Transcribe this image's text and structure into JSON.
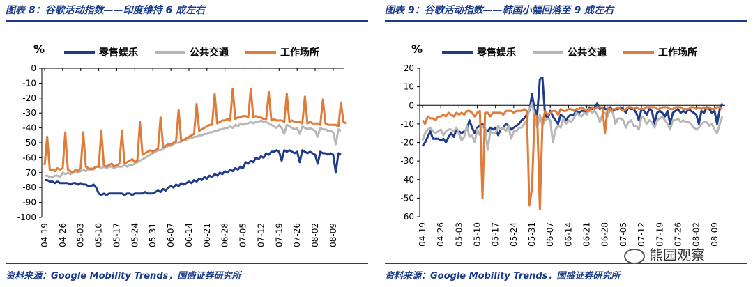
{
  "panels": [
    {
      "title": "图表 8：谷歌活动指数——印度维持 6 成左右",
      "source": "资料来源：Google Mobility Trends，国盛证券研究所"
    },
    {
      "title": "图表 9：谷歌活动指数——韩国小幅回落至 9 成左右",
      "source": "资料来源：Google Mobility Trends，国盛证券研究所"
    }
  ],
  "watermark": {
    "text": "熊园观察",
    "icon": "wechat-icon"
  },
  "chart_data": [
    {
      "type": "line",
      "unit_label": "%",
      "ylim": [
        -100,
        0
      ],
      "yticks": [
        0,
        -10,
        -20,
        -30,
        -40,
        -50,
        -60,
        -70,
        -80,
        -90,
        -100
      ],
      "x_tick_labels": [
        "04-19",
        "04-26",
        "05-03",
        "05-10",
        "05-17",
        "05-24",
        "05-31",
        "06-07",
        "06-14",
        "06-21",
        "06-28",
        "07-05",
        "07-12",
        "07-19",
        "07-26",
        "08-02",
        "08-09"
      ],
      "legend_position": "top",
      "x_start": "04-19",
      "days": 116,
      "series": [
        {
          "name": "零售娱乐",
          "color": "#1f3c88",
          "values": [
            -75,
            -75,
            -76,
            -76,
            -77,
            -76,
            -77,
            -77,
            -77,
            -77,
            -78,
            -77,
            -77,
            -78,
            -77,
            -78,
            -78,
            -79,
            -79,
            -78,
            -80,
            -84,
            -85,
            -84,
            -85,
            -84,
            -84,
            -84,
            -84,
            -84,
            -84,
            -85,
            -84,
            -84,
            -85,
            -84,
            -84,
            -84,
            -84,
            -83,
            -84,
            -84,
            -84,
            -83,
            -82,
            -83,
            -81,
            -82,
            -80,
            -79,
            -80,
            -78,
            -79,
            -77,
            -78,
            -77,
            -76,
            -77,
            -75,
            -76,
            -74,
            -75,
            -73,
            -74,
            -72,
            -73,
            -71,
            -72,
            -70,
            -71,
            -69,
            -70,
            -68,
            -69,
            -67,
            -68,
            -66,
            -67,
            -63,
            -64,
            -62,
            -63,
            -60,
            -61,
            -59,
            -60,
            -57,
            -58,
            -56,
            -56,
            -55,
            -56,
            -62,
            -55,
            -56,
            -55,
            -56,
            -57,
            -56,
            -63,
            -55,
            -56,
            -57,
            -56,
            -57,
            -58,
            -64,
            -56,
            -57,
            -57,
            -58,
            -57,
            -58,
            -70,
            -57,
            -58
          ]
        },
        {
          "name": "公共交通",
          "color": "#b7b7b7",
          "values": [
            -72,
            -72,
            -73,
            -73,
            -72,
            -72,
            -73,
            -70,
            -71,
            -70,
            -71,
            -70,
            -69,
            -70,
            -69,
            -68,
            -69,
            -68,
            -67,
            -68,
            -66,
            -66,
            -67,
            -66,
            -67,
            -66,
            -66,
            -67,
            -66,
            -66,
            -66,
            -65,
            -66,
            -65,
            -65,
            -64,
            -63,
            -62,
            -61,
            -60,
            -59,
            -58,
            -57,
            -56,
            -55,
            -55,
            -54,
            -53,
            -52,
            -52,
            -51,
            -50,
            -50,
            -49,
            -48,
            -48,
            -47,
            -47,
            -46,
            -46,
            -45,
            -45,
            -44,
            -44,
            -43,
            -43,
            -42,
            -42,
            -41,
            -41,
            -40,
            -40,
            -39,
            -40,
            -38,
            -39,
            -37,
            -38,
            -37,
            -37,
            -36,
            -37,
            -36,
            -36,
            -35,
            -36,
            -36,
            -37,
            -38,
            -39,
            -40,
            -38,
            -40,
            -44,
            -38,
            -39,
            -40,
            -41,
            -40,
            -44,
            -39,
            -40,
            -41,
            -40,
            -41,
            -42,
            -46,
            -40,
            -41,
            -41,
            -42,
            -42,
            -43,
            -51,
            -41,
            -42
          ]
        },
        {
          "name": "工作场所",
          "color": "#e07b39",
          "values": [
            -65,
            -46,
            -68,
            -68,
            -69,
            -67,
            -68,
            -67,
            -43,
            -68,
            -69,
            -70,
            -68,
            -69,
            -67,
            -43,
            -66,
            -67,
            -68,
            -67,
            -66,
            -66,
            -42,
            -65,
            -66,
            -65,
            -64,
            -66,
            -65,
            -64,
            -42,
            -64,
            -63,
            -62,
            -61,
            -63,
            -62,
            -36,
            -58,
            -57,
            -56,
            -55,
            -56,
            -55,
            -54,
            -33,
            -53,
            -52,
            -51,
            -51,
            -50,
            -49,
            -28,
            -49,
            -48,
            -47,
            -46,
            -45,
            -44,
            -24,
            -42,
            -41,
            -40,
            -39,
            -38,
            -38,
            -17,
            -37,
            -36,
            -35,
            -35,
            -34,
            -35,
            -14,
            -34,
            -33,
            -33,
            -32,
            -32,
            -33,
            -14,
            -33,
            -32,
            -33,
            -33,
            -34,
            -34,
            -16,
            -35,
            -34,
            -35,
            -35,
            -35,
            -36,
            -17,
            -36,
            -35,
            -36,
            -36,
            -36,
            -37,
            -19,
            -37,
            -36,
            -37,
            -37,
            -37,
            -38,
            -21,
            -37,
            -38,
            -38,
            -38,
            -38,
            -39,
            -23,
            -36,
            -37
          ]
        }
      ]
    },
    {
      "type": "line",
      "unit_label": "%",
      "ylim": [
        -60,
        20
      ],
      "yticks": [
        20,
        10,
        0,
        -10,
        -20,
        -30,
        -40,
        -50,
        -60
      ],
      "x_tick_labels": [
        "04-19",
        "04-26",
        "05-03",
        "05-10",
        "05-17",
        "05-24",
        "05-31",
        "06-07",
        "06-14",
        "06-21",
        "06-28",
        "07-05",
        "07-12",
        "07-19",
        "07-26",
        "08-02",
        "08-09"
      ],
      "legend_position": "top",
      "x_start": "04-19",
      "days": 116,
      "series": [
        {
          "name": "零售娱乐",
          "color": "#1f3c88",
          "values": [
            -22,
            -20,
            -17,
            -14,
            -18,
            -18,
            -18,
            -19,
            -18,
            -20,
            -17,
            -15,
            -17,
            -13,
            -14,
            -15,
            -14,
            -13,
            -8,
            -12,
            -15,
            -12,
            -11,
            -10,
            -13,
            -14,
            -12,
            -13,
            -12,
            -16,
            -13,
            -12,
            -10,
            -11,
            -13,
            -12,
            -11,
            -10,
            -8,
            -7,
            -5,
            -3,
            6,
            -2,
            -5,
            14,
            15,
            -5,
            -7,
            -3,
            -6,
            -8,
            -10,
            -5,
            -6,
            -8,
            -6,
            -5,
            -5,
            -3,
            -4,
            -3,
            -3,
            -4,
            -1,
            -2,
            -1,
            1,
            -2,
            -1,
            -2,
            -2,
            -1,
            -3,
            -2,
            -2,
            -1,
            -2,
            -4,
            -1,
            -2,
            -2,
            -4,
            -8,
            -2,
            -3,
            -5,
            -2,
            -3,
            -10,
            -4,
            -3,
            -4,
            -6,
            -3,
            -10,
            -4,
            -3,
            -2,
            -4,
            -3,
            -4,
            -2,
            -3,
            -4,
            -5,
            -10,
            -3,
            -4,
            -1,
            -2,
            -4,
            -3,
            -10,
            -2,
            1
          ]
        },
        {
          "name": "公共交通",
          "color": "#b7b7b7",
          "values": [
            -19,
            -15,
            -13,
            -12,
            -14,
            -15,
            -14,
            -13,
            -16,
            -14,
            -13,
            -13,
            -14,
            -12,
            -15,
            -19,
            -17,
            -11,
            -17,
            -16,
            -20,
            -13,
            -16,
            -11,
            -12,
            -24,
            -14,
            -15,
            -15,
            -11,
            -13,
            -12,
            -14,
            -11,
            -18,
            -14,
            -14,
            -12,
            -12,
            -10,
            -8,
            -2,
            1,
            -6,
            -12,
            -5,
            -11,
            -8,
            -7,
            -8,
            -20,
            -13,
            -11,
            -12,
            -7,
            -10,
            -8,
            -9,
            -7,
            -4,
            -5,
            -6,
            -4,
            -5,
            -2,
            -4,
            -3,
            -5,
            -9,
            -5,
            -4,
            -6,
            -2,
            -4,
            -10,
            -7,
            -7,
            -8,
            -12,
            -9,
            -8,
            -11,
            -11,
            -13,
            -6,
            -7,
            -10,
            -8,
            -9,
            -12,
            -8,
            -7,
            -6,
            -8,
            -10,
            -13,
            -8,
            -8,
            -7,
            -9,
            -8,
            -9,
            -9,
            -10,
            -12,
            -13,
            -12,
            -10,
            -9,
            -9,
            -11,
            -10,
            -13,
            -15,
            -10,
            -6
          ]
        },
        {
          "name": "工作场所",
          "color": "#e07b39",
          "values": [
            -8,
            -10,
            -6,
            -7,
            -7,
            -8,
            -6,
            -6,
            -5,
            -6,
            -4,
            -5,
            -6,
            -4,
            -5,
            -4,
            -5,
            -3,
            -3,
            -4,
            -6,
            -4,
            -3,
            -50,
            -4,
            -4,
            -6,
            -4,
            -4,
            -4,
            -4,
            -5,
            -3,
            -3,
            -3,
            -4,
            -3,
            -3,
            -3,
            -2,
            -3,
            -54,
            -45,
            -5,
            -6,
            -56,
            -10,
            -3,
            -5,
            -4,
            -3,
            -3,
            -5,
            -2,
            -3,
            -3,
            -2,
            -2,
            -3,
            -2,
            -2,
            -1,
            -2,
            -3,
            -3,
            -1,
            -2,
            -1,
            -1,
            -1,
            -15,
            -1,
            -3,
            -2,
            -2,
            -1,
            -2,
            -3,
            -2,
            -1,
            -1,
            -2,
            -1,
            -2,
            -2,
            -2,
            -1,
            -1,
            -1,
            -1,
            -2,
            -2,
            -1,
            -1,
            -1,
            -2,
            -2,
            -1,
            -1,
            -1,
            -2,
            -2,
            -2,
            -1,
            -1,
            -2,
            -1,
            -2,
            -1,
            -2,
            -1,
            -2,
            -2,
            -1,
            -1,
            -2
          ]
        }
      ]
    }
  ]
}
